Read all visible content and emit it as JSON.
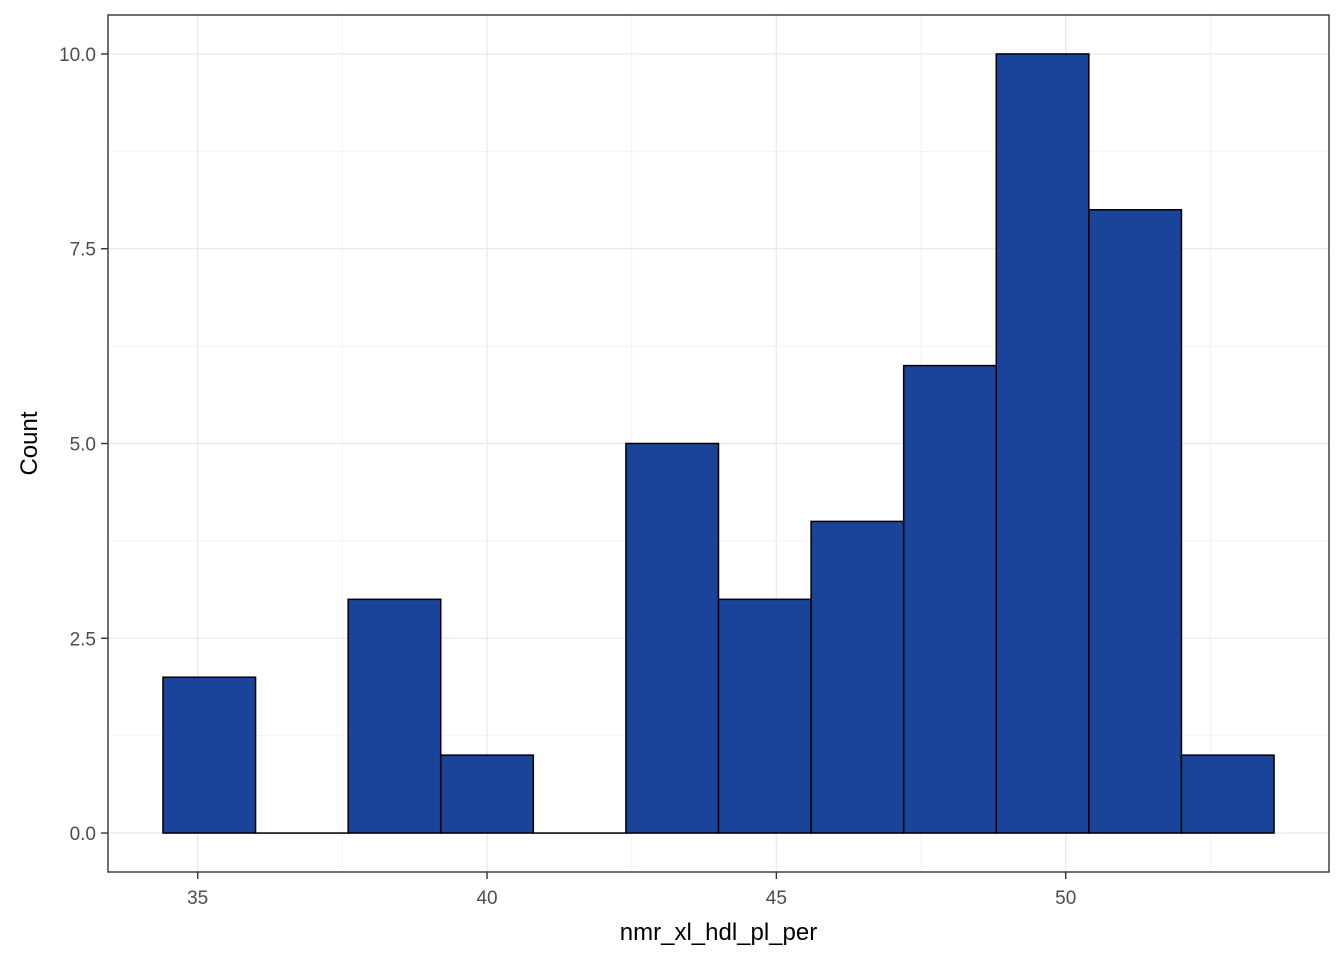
{
  "chart_data": {
    "type": "bar",
    "subtype": "histogram",
    "xlabel": "nmr_xl_hdl_pl_per",
    "ylabel": "Count",
    "bin_width": 1.6,
    "bins": [
      {
        "x_start": 34.4,
        "x_end": 36.0,
        "count": 2
      },
      {
        "x_start": 36.0,
        "x_end": 37.6,
        "count": 0
      },
      {
        "x_start": 37.6,
        "x_end": 39.2,
        "count": 3
      },
      {
        "x_start": 39.2,
        "x_end": 40.8,
        "count": 1
      },
      {
        "x_start": 40.8,
        "x_end": 42.4,
        "count": 0
      },
      {
        "x_start": 42.4,
        "x_end": 44.0,
        "count": 5
      },
      {
        "x_start": 44.0,
        "x_end": 45.6,
        "count": 3
      },
      {
        "x_start": 45.6,
        "x_end": 47.2,
        "count": 4
      },
      {
        "x_start": 47.2,
        "x_end": 48.8,
        "count": 6
      },
      {
        "x_start": 48.8,
        "x_end": 50.4,
        "count": 10
      },
      {
        "x_start": 50.4,
        "x_end": 52.0,
        "count": 8
      },
      {
        "x_start": 52.0,
        "x_end": 53.6,
        "count": 1
      }
    ],
    "xlim": [
      33.45,
      54.55
    ],
    "ylim": [
      -0.5,
      10.5
    ],
    "x_ticks": [
      35,
      40,
      45,
      50
    ],
    "x_tick_labels": [
      "35",
      "40",
      "45",
      "50"
    ],
    "y_ticks": [
      0,
      2.5,
      5,
      7.5,
      10
    ],
    "y_tick_labels": [
      "0.0",
      "2.5",
      "5.0",
      "7.5",
      "10.0"
    ],
    "grid": true,
    "bar_fill": "#1a4499",
    "bar_outline": "#000000",
    "panel_border": "#333333",
    "grid_major_color": "#ebebeb",
    "grid_minor_color": "#f2f2f2",
    "legend": "none"
  }
}
